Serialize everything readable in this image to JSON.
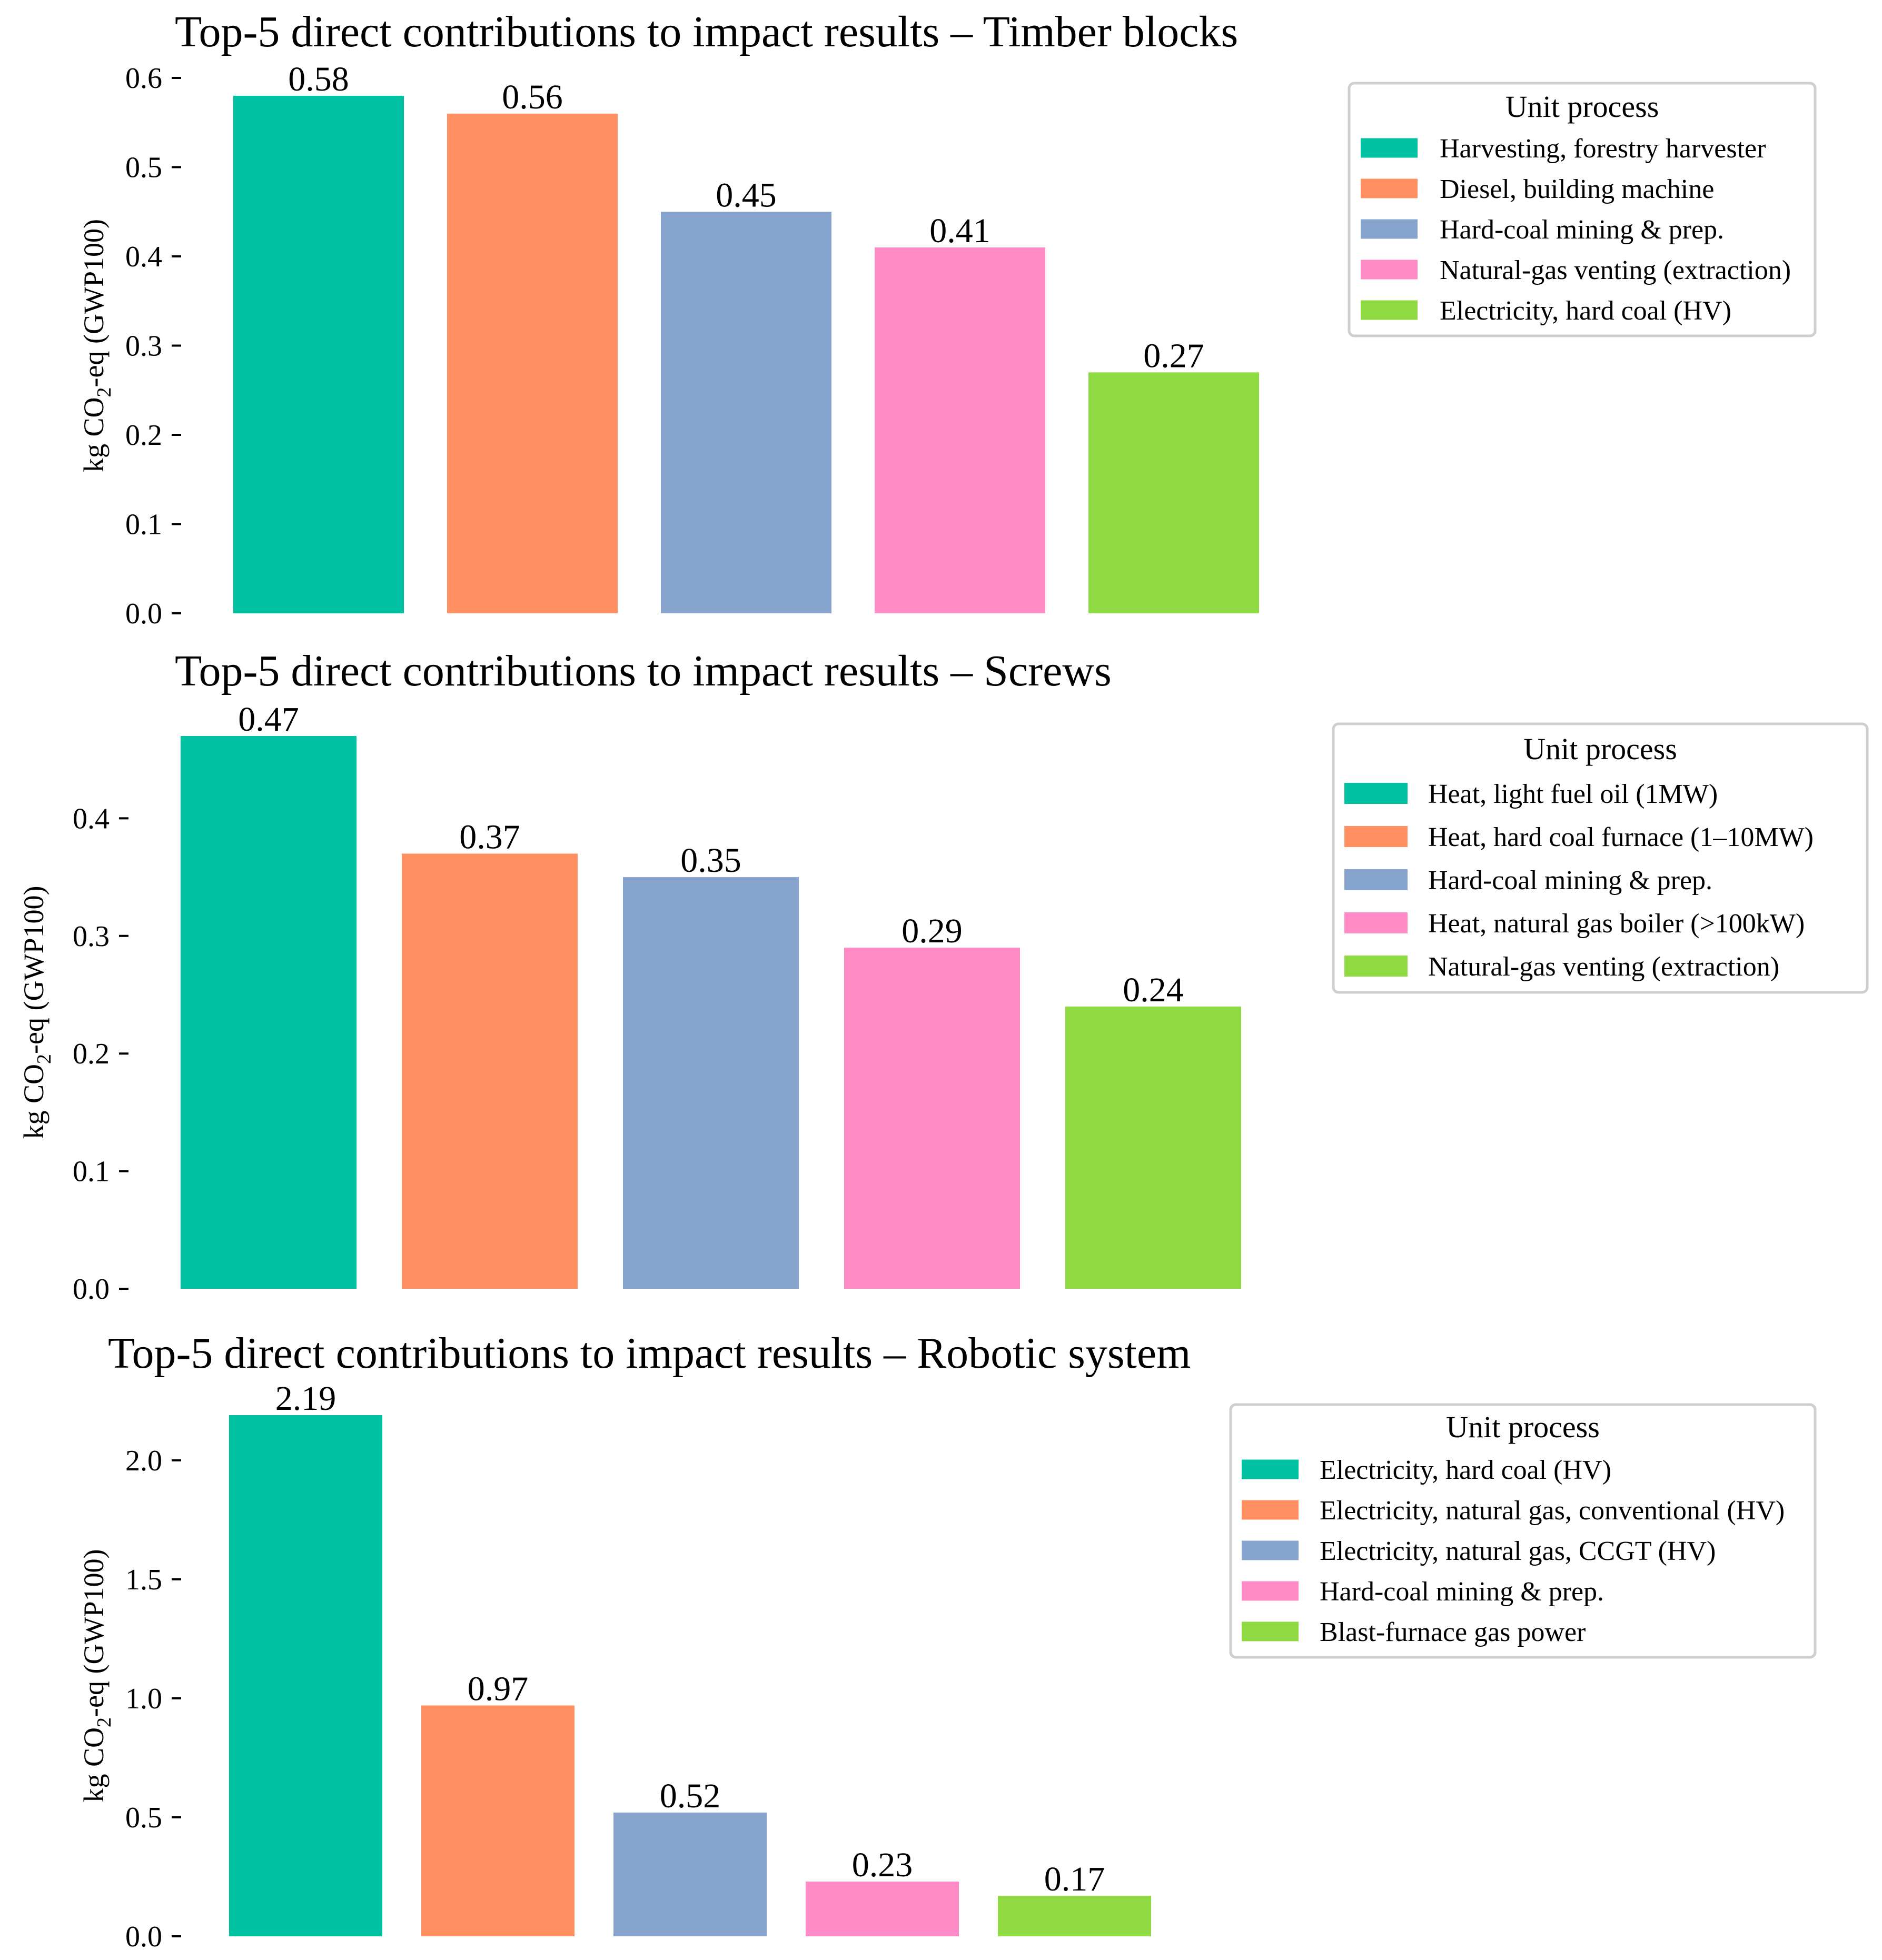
{
  "chart_data": [
    {
      "type": "bar",
      "title": "Top-5 direct contributions to impact results – Timber blocks",
      "ylabel": {
        "pre": "kg CO",
        "sub": "2",
        "post": "-eq (GWP100)"
      },
      "ylim": [
        0,
        0.6
      ],
      "yticks": [
        "0.0",
        "0.1",
        "0.2",
        "0.3",
        "0.4",
        "0.5",
        "0.6"
      ],
      "categories": [
        "Harvesting, forestry harvester",
        "Diesel, building machine",
        "Hard-coal mining & prep.",
        "Natural-gas venting (extraction)",
        "Electricity, hard coal (HV)"
      ],
      "values": [
        0.58,
        0.56,
        0.45,
        0.41,
        0.27
      ],
      "value_labels": [
        "0.58",
        "0.56",
        "0.45",
        "0.41",
        "0.27"
      ],
      "colors": [
        "#00c2a2",
        "#ff8f61",
        "#87a4cf",
        "#ff8ac5",
        "#8fd942"
      ],
      "legend_title": "Unit process",
      "legend_position": "top-right"
    },
    {
      "type": "bar",
      "title": "Top-5 direct contributions to impact results – Screws",
      "ylabel": {
        "pre": "kg CO",
        "sub": "2",
        "post": "-eq (GWP100)"
      },
      "ylim": [
        0,
        0.47
      ],
      "yticks": [
        "0.0",
        "0.1",
        "0.2",
        "0.3",
        "0.4"
      ],
      "categories": [
        "Heat, light fuel oil (1MW)",
        "Heat, hard coal furnace (1–10MW)",
        "Hard-coal mining & prep.",
        "Heat, natural gas boiler (>100kW)",
        "Natural-gas venting (extraction)"
      ],
      "values": [
        0.47,
        0.37,
        0.35,
        0.29,
        0.24
      ],
      "value_labels": [
        "0.47",
        "0.37",
        "0.35",
        "0.29",
        "0.24"
      ],
      "colors": [
        "#00c2a2",
        "#ff8f61",
        "#87a4cf",
        "#ff8ac5",
        "#8fd942"
      ],
      "legend_title": "Unit process",
      "legend_position": "top-right"
    },
    {
      "type": "bar",
      "title": "Top-5 direct contributions to impact results – Robotic system",
      "ylabel": {
        "pre": "kg CO",
        "sub": "2",
        "post": "-eq (GWP100)"
      },
      "ylim": [
        0,
        2.19
      ],
      "yticks": [
        "0.0",
        "0.5",
        "1.0",
        "1.5",
        "2.0"
      ],
      "categories": [
        "Electricity, hard coal (HV)",
        "Electricity, natural gas, conventional (HV)",
        "Electricity, natural gas, CCGT (HV)",
        "Hard-coal mining & prep.",
        "Blast-furnace gas power"
      ],
      "values": [
        2.19,
        0.97,
        0.52,
        0.23,
        0.17
      ],
      "value_labels": [
        "2.19",
        "0.97",
        "0.52",
        "0.23",
        "0.17"
      ],
      "colors": [
        "#00c2a2",
        "#ff8f61",
        "#87a4cf",
        "#ff8ac5",
        "#8fd942"
      ],
      "legend_title": "Unit process",
      "legend_position": "top-right"
    }
  ]
}
